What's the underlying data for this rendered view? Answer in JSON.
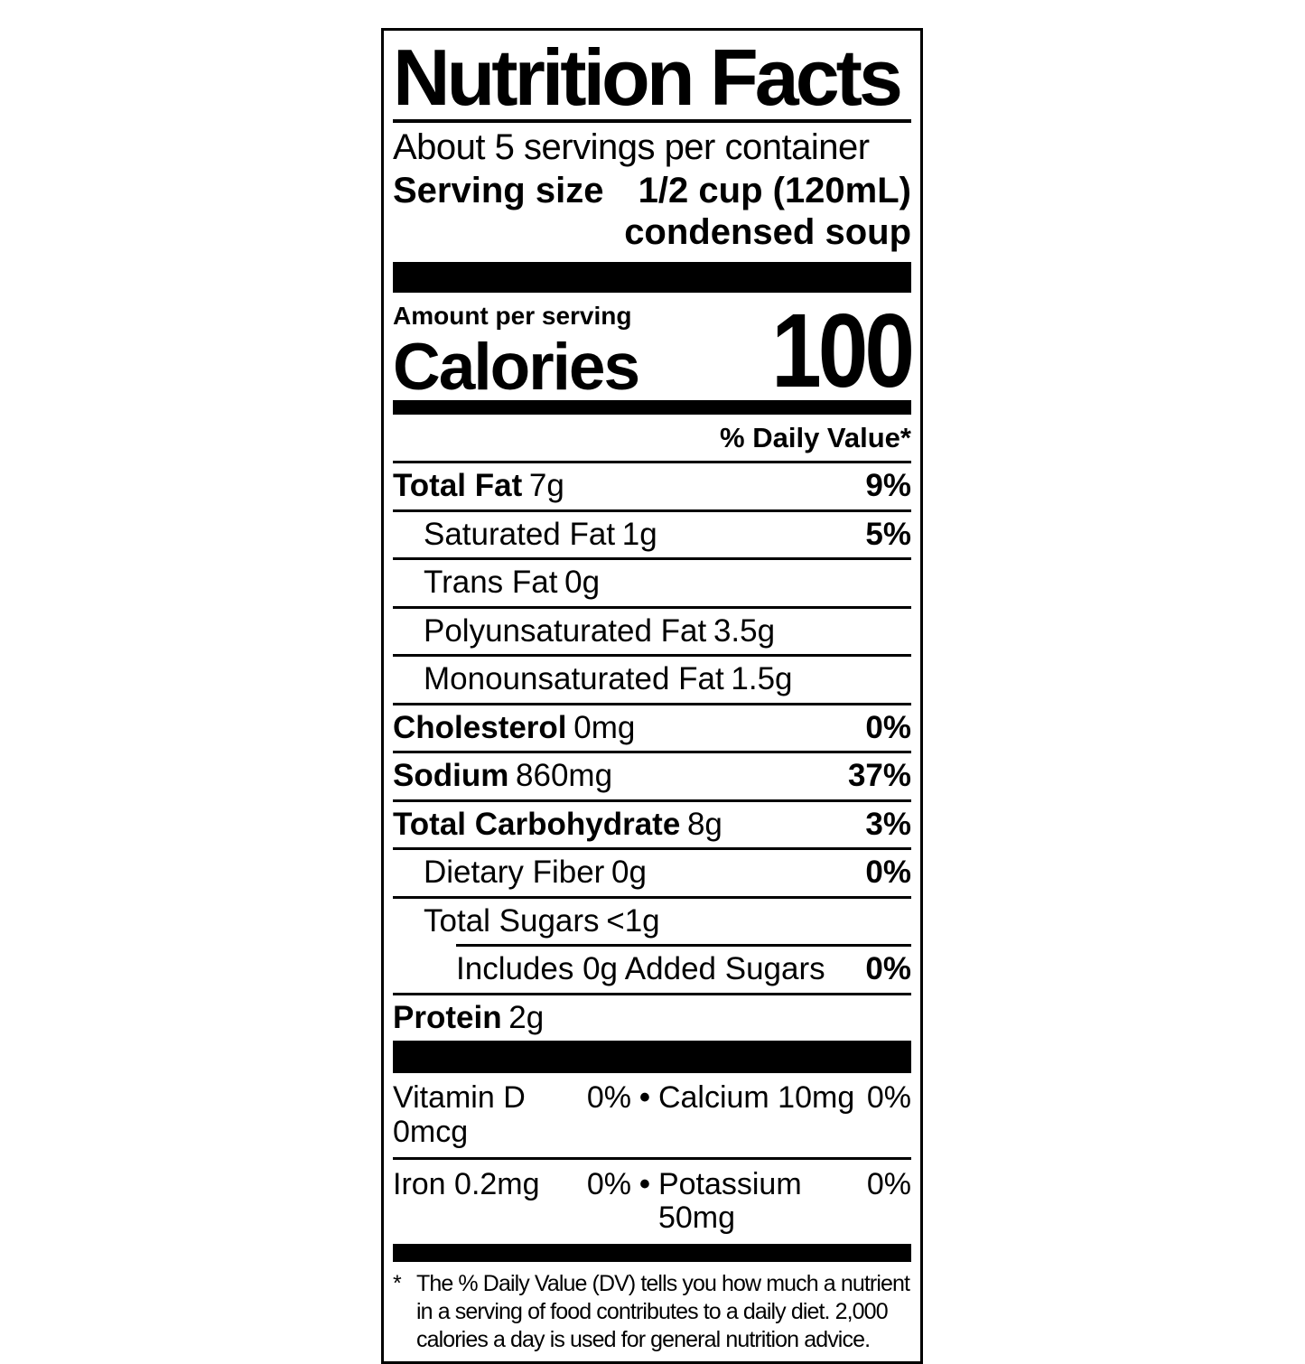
{
  "colors": {
    "ink": "#000000",
    "paper": "#ffffff"
  },
  "label": {
    "title": "Nutrition Facts",
    "servings_per_container": "About 5 servings per container",
    "serving_size_label": "Serving size",
    "serving_size_value": "1/2 cup (120mL)\ncondensed soup",
    "amount_per_serving": "Amount per serving",
    "calories_label": "Calories",
    "calories_value": "100",
    "daily_value_header": "% Daily Value*",
    "nutrients": [
      {
        "name": "Total Fat",
        "amount": "7g",
        "dv": "9%",
        "bold": true,
        "indent": 0
      },
      {
        "name": "Saturated Fat",
        "amount": "1g",
        "dv": "5%",
        "bold": false,
        "indent": 1
      },
      {
        "name": "Trans Fat",
        "amount": "0g",
        "dv": "",
        "bold": false,
        "indent": 1
      },
      {
        "name": "Polyunsaturated Fat",
        "amount": "3.5g",
        "dv": "",
        "bold": false,
        "indent": 1
      },
      {
        "name": "Monounsaturated Fat",
        "amount": "1.5g",
        "dv": "",
        "bold": false,
        "indent": 1
      },
      {
        "name": "Cholesterol",
        "amount": "0mg",
        "dv": "0%",
        "bold": true,
        "indent": 0
      },
      {
        "name": "Sodium",
        "amount": "860mg",
        "dv": "37%",
        "bold": true,
        "indent": 0
      },
      {
        "name": "Total Carbohydrate",
        "amount": "8g",
        "dv": "3%",
        "bold": true,
        "indent": 0
      },
      {
        "name": "Dietary Fiber",
        "amount": "0g",
        "dv": "0%",
        "bold": false,
        "indent": 1
      },
      {
        "name": "Total Sugars",
        "amount": "<1g",
        "dv": "",
        "bold": false,
        "indent": 1
      },
      {
        "name": "Includes 0g Added Sugars",
        "amount": "",
        "dv": "0%",
        "bold": false,
        "indent": 2
      },
      {
        "name": "Protein",
        "amount": "2g",
        "dv": "",
        "bold": true,
        "indent": 0
      }
    ],
    "bullet": "•",
    "micronutrients": [
      {
        "left_name": "Vitamin D 0mcg",
        "left_dv": "0%",
        "right_name": "Calcium 10mg",
        "right_dv": "0%"
      },
      {
        "left_name": "Iron 0.2mg",
        "left_dv": "0%",
        "right_name": "Potassium 50mg",
        "right_dv": "0%"
      }
    ],
    "footnote_marker": "*",
    "footnote": "The % Daily Value (DV) tells you how much a nutrient in a serving of food contributes to a daily diet. 2,000 calories a day is used for general nutrition advice."
  }
}
